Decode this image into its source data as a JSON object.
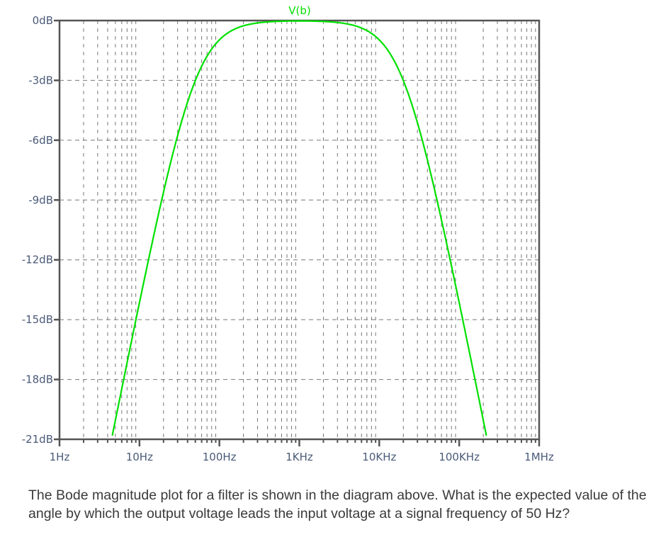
{
  "chart_data": {
    "type": "line",
    "title": "V(b)",
    "xlabel": "",
    "ylabel": "",
    "x_scale": "log",
    "xlim": [
      1,
      1000000
    ],
    "ylim": [
      -21,
      0
    ],
    "grid": true,
    "x_ticks": [
      {
        "value": 1,
        "label": "1Hz"
      },
      {
        "value": 10,
        "label": "10Hz"
      },
      {
        "value": 100,
        "label": "100Hz"
      },
      {
        "value": 1000,
        "label": "1KHz"
      },
      {
        "value": 10000,
        "label": "10KHz"
      },
      {
        "value": 100000,
        "label": "100KHz"
      },
      {
        "value": 1000000,
        "label": "1MHz"
      }
    ],
    "y_ticks": [
      {
        "value": 0,
        "label": "0dB"
      },
      {
        "value": -3,
        "label": "-3dB"
      },
      {
        "value": -6,
        "label": "-6dB"
      },
      {
        "value": -9,
        "label": "-9dB"
      },
      {
        "value": -12,
        "label": "-12dB"
      },
      {
        "value": -15,
        "label": "-15dB"
      },
      {
        "value": -18,
        "label": "-18dB"
      },
      {
        "value": -21,
        "label": "-21dB"
      }
    ],
    "series": [
      {
        "name": "V(b)",
        "color": "#00e000",
        "model": "first-order band-pass",
        "f_low_hz": 50,
        "f_high_hz": 20000,
        "x": [
          4.5,
          7,
          10,
          15,
          20,
          30,
          50,
          100,
          200,
          500,
          1000,
          2000,
          5000,
          10000,
          20000,
          40000,
          70000,
          100000,
          150000,
          222000
        ],
        "values": [
          -20.9,
          -17.2,
          -14.1,
          -10.8,
          -8.6,
          -5.3,
          -3.0,
          -1.0,
          -0.3,
          -0.05,
          0.0,
          -0.05,
          -0.3,
          -1.0,
          -3.0,
          -7.0,
          -11.3,
          -14.1,
          -17.5,
          -20.9
        ]
      }
    ],
    "colors": {
      "axis": "#555555",
      "grid": "#777777",
      "trace": "#00e000",
      "tick_label": "#4a5a78"
    }
  },
  "question": {
    "text": "The Bode magnitude plot for a filter is shown in the diagram above. What is the expected value of the angle by which the output voltage leads the input voltage at a signal frequency of 50 Hz?"
  }
}
